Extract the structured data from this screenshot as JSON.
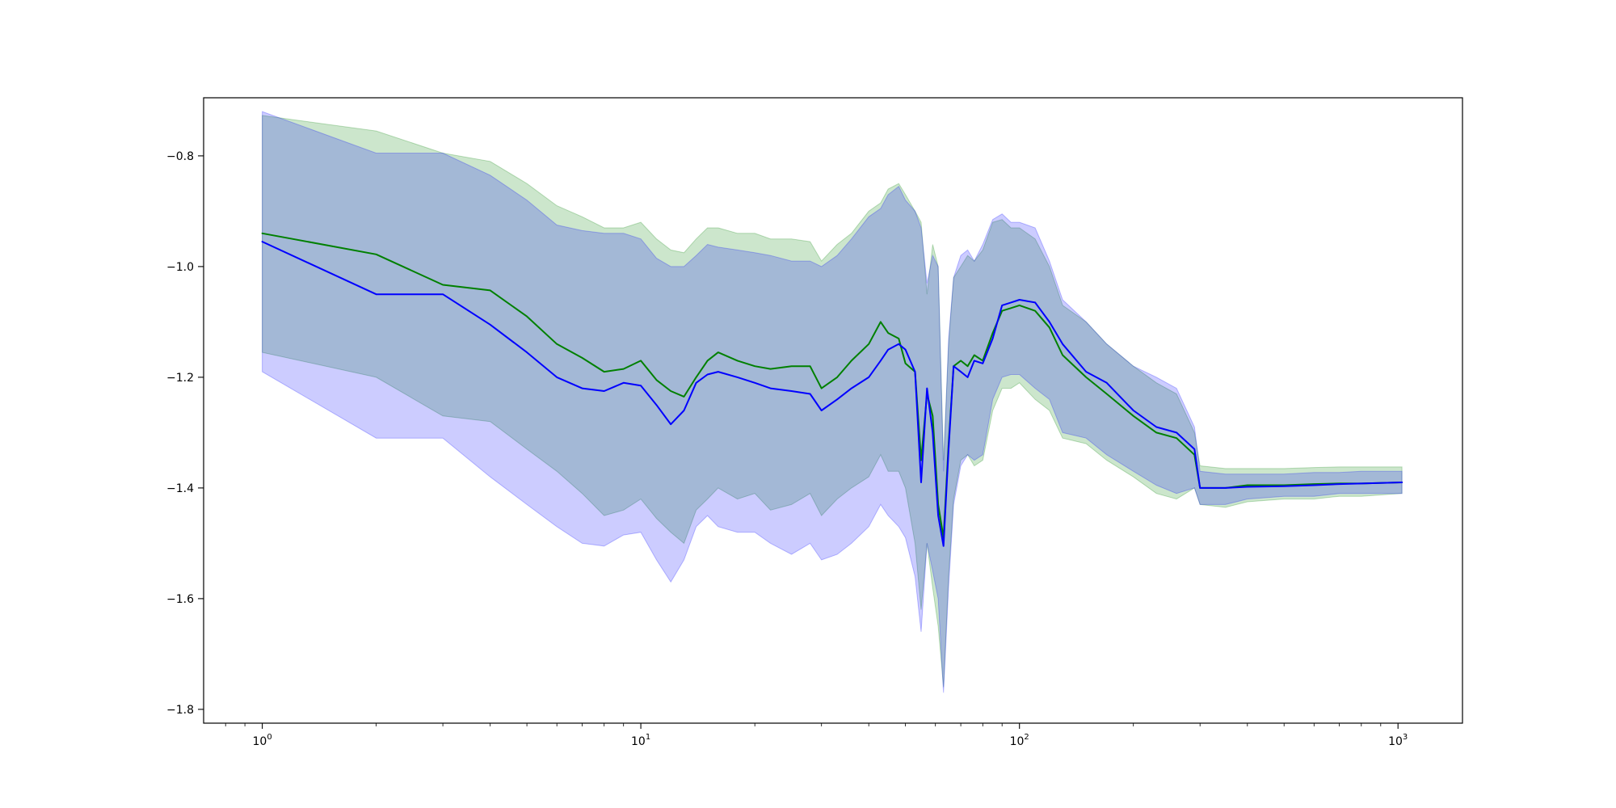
{
  "chart_data": {
    "type": "line",
    "title": "",
    "xlabel": "",
    "ylabel": "",
    "x_scale": "log",
    "xlim": [
      0.7,
      1480
    ],
    "ylim": [
      -1.825,
      -0.695
    ],
    "grid": false,
    "x_ticks": [
      {
        "value": 1,
        "base": "10",
        "exp": "0"
      },
      {
        "value": 10,
        "base": "10",
        "exp": "1"
      },
      {
        "value": 100,
        "base": "10",
        "exp": "2"
      },
      {
        "value": 1000,
        "base": "10",
        "exp": "3"
      }
    ],
    "y_ticks": [
      {
        "value": -0.8,
        "label": "−0.8"
      },
      {
        "value": -1.0,
        "label": "−1.0"
      },
      {
        "value": -1.2,
        "label": "−1.2"
      },
      {
        "value": -1.4,
        "label": "−1.4"
      },
      {
        "value": -1.6,
        "label": "−1.6"
      },
      {
        "value": -1.8,
        "label": "−1.8"
      }
    ],
    "series": [
      {
        "color": "#008000",
        "band_color": "#008000",
        "band_opacity": 0.2,
        "x": [
          1,
          2,
          3,
          4,
          5,
          6,
          7,
          8,
          9,
          10,
          11,
          12,
          13,
          14,
          15,
          16,
          18,
          20,
          22,
          25,
          28,
          30,
          33,
          36,
          40,
          43,
          45,
          48,
          50,
          53,
          55,
          57,
          59,
          61,
          63,
          65,
          67,
          70,
          73,
          76,
          80,
          85,
          90,
          95,
          100,
          110,
          120,
          130,
          150,
          170,
          200,
          230,
          260,
          290,
          300,
          350,
          400,
          500,
          600,
          700,
          800,
          1024
        ],
        "y": [
          -0.94,
          -0.978,
          -1.033,
          -1.043,
          -1.09,
          -1.14,
          -1.165,
          -1.19,
          -1.185,
          -1.17,
          -1.205,
          -1.225,
          -1.235,
          -1.2,
          -1.17,
          -1.155,
          -1.17,
          -1.18,
          -1.185,
          -1.18,
          -1.18,
          -1.22,
          -1.2,
          -1.17,
          -1.14,
          -1.1,
          -1.12,
          -1.13,
          -1.175,
          -1.19,
          -1.35,
          -1.23,
          -1.27,
          -1.43,
          -1.49,
          -1.32,
          -1.18,
          -1.17,
          -1.18,
          -1.16,
          -1.17,
          -1.12,
          -1.08,
          -1.075,
          -1.07,
          -1.08,
          -1.11,
          -1.16,
          -1.2,
          -1.23,
          -1.27,
          -1.3,
          -1.31,
          -1.34,
          -1.4,
          -1.4,
          -1.395,
          -1.395,
          -1.393,
          -1.392,
          -1.392,
          -1.39
        ],
        "upper": [
          -0.727,
          -0.755,
          -0.795,
          -0.81,
          -0.85,
          -0.89,
          -0.91,
          -0.93,
          -0.93,
          -0.92,
          -0.95,
          -0.97,
          -0.975,
          -0.95,
          -0.93,
          -0.93,
          -0.94,
          -0.94,
          -0.95,
          -0.95,
          -0.955,
          -0.99,
          -0.96,
          -0.94,
          -0.9,
          -0.885,
          -0.86,
          -0.85,
          -0.87,
          -0.9,
          -0.92,
          -1.05,
          -0.96,
          -1.0,
          -1.35,
          -1.14,
          -1.02,
          -1.0,
          -0.98,
          -0.99,
          -0.97,
          -0.92,
          -0.915,
          -0.93,
          -0.93,
          -0.95,
          -1.0,
          -1.07,
          -1.1,
          -1.14,
          -1.18,
          -1.21,
          -1.23,
          -1.3,
          -1.36,
          -1.365,
          -1.365,
          -1.365,
          -1.363,
          -1.362,
          -1.362,
          -1.362
        ],
        "lower": [
          -1.155,
          -1.2,
          -1.27,
          -1.28,
          -1.33,
          -1.37,
          -1.41,
          -1.45,
          -1.44,
          -1.42,
          -1.455,
          -1.48,
          -1.5,
          -1.44,
          -1.42,
          -1.4,
          -1.42,
          -1.41,
          -1.44,
          -1.43,
          -1.41,
          -1.45,
          -1.42,
          -1.4,
          -1.38,
          -1.34,
          -1.37,
          -1.37,
          -1.4,
          -1.5,
          -1.62,
          -1.5,
          -1.58,
          -1.65,
          -1.76,
          -1.56,
          -1.42,
          -1.35,
          -1.34,
          -1.36,
          -1.35,
          -1.26,
          -1.22,
          -1.22,
          -1.21,
          -1.24,
          -1.26,
          -1.31,
          -1.32,
          -1.35,
          -1.38,
          -1.41,
          -1.42,
          -1.4,
          -1.43,
          -1.435,
          -1.425,
          -1.42,
          -1.42,
          -1.415,
          -1.415,
          -1.41
        ]
      },
      {
        "color": "#0000ff",
        "band_color": "#0000ff",
        "band_opacity": 0.2,
        "x": [
          1,
          2,
          3,
          4,
          5,
          6,
          7,
          8,
          9,
          10,
          11,
          12,
          13,
          14,
          15,
          16,
          18,
          20,
          22,
          25,
          28,
          30,
          33,
          36,
          40,
          43,
          45,
          48,
          50,
          53,
          55,
          57,
          59,
          61,
          63,
          65,
          67,
          70,
          73,
          76,
          80,
          85,
          90,
          95,
          100,
          110,
          120,
          130,
          150,
          170,
          200,
          230,
          260,
          290,
          300,
          350,
          400,
          500,
          600,
          700,
          800,
          1024
        ],
        "y": [
          -0.955,
          -1.05,
          -1.05,
          -1.105,
          -1.155,
          -1.2,
          -1.22,
          -1.225,
          -1.21,
          -1.215,
          -1.25,
          -1.285,
          -1.26,
          -1.21,
          -1.195,
          -1.19,
          -1.2,
          -1.21,
          -1.22,
          -1.225,
          -1.23,
          -1.26,
          -1.24,
          -1.22,
          -1.2,
          -1.17,
          -1.15,
          -1.14,
          -1.15,
          -1.19,
          -1.39,
          -1.22,
          -1.3,
          -1.45,
          -1.505,
          -1.33,
          -1.18,
          -1.19,
          -1.2,
          -1.17,
          -1.175,
          -1.13,
          -1.07,
          -1.065,
          -1.06,
          -1.065,
          -1.1,
          -1.14,
          -1.19,
          -1.21,
          -1.26,
          -1.29,
          -1.3,
          -1.33,
          -1.4,
          -1.4,
          -1.398,
          -1.397,
          -1.395,
          -1.393,
          -1.392,
          -1.39
        ],
        "upper": [
          -0.72,
          -0.795,
          -0.795,
          -0.835,
          -0.88,
          -0.925,
          -0.935,
          -0.94,
          -0.94,
          -0.95,
          -0.985,
          -1.0,
          -1.0,
          -0.98,
          -0.96,
          -0.965,
          -0.97,
          -0.975,
          -0.98,
          -0.99,
          -0.99,
          -1.0,
          -0.98,
          -0.95,
          -0.91,
          -0.895,
          -0.87,
          -0.855,
          -0.88,
          -0.9,
          -0.93,
          -1.03,
          -0.98,
          -1.0,
          -1.37,
          -1.13,
          -1.02,
          -0.98,
          -0.97,
          -0.99,
          -0.96,
          -0.915,
          -0.905,
          -0.92,
          -0.92,
          -0.93,
          -0.99,
          -1.06,
          -1.1,
          -1.14,
          -1.18,
          -1.2,
          -1.22,
          -1.29,
          -1.37,
          -1.375,
          -1.375,
          -1.375,
          -1.372,
          -1.372,
          -1.37,
          -1.37
        ],
        "lower": [
          -1.19,
          -1.31,
          -1.31,
          -1.38,
          -1.43,
          -1.47,
          -1.5,
          -1.505,
          -1.485,
          -1.48,
          -1.53,
          -1.57,
          -1.53,
          -1.47,
          -1.45,
          -1.47,
          -1.48,
          -1.48,
          -1.5,
          -1.52,
          -1.5,
          -1.53,
          -1.52,
          -1.5,
          -1.47,
          -1.43,
          -1.45,
          -1.47,
          -1.49,
          -1.56,
          -1.66,
          -1.5,
          -1.55,
          -1.6,
          -1.77,
          -1.58,
          -1.43,
          -1.36,
          -1.34,
          -1.35,
          -1.34,
          -1.24,
          -1.2,
          -1.195,
          -1.195,
          -1.22,
          -1.24,
          -1.3,
          -1.31,
          -1.34,
          -1.37,
          -1.395,
          -1.41,
          -1.4,
          -1.43,
          -1.43,
          -1.42,
          -1.415,
          -1.415,
          -1.41,
          -1.41,
          -1.41
        ]
      }
    ]
  }
}
